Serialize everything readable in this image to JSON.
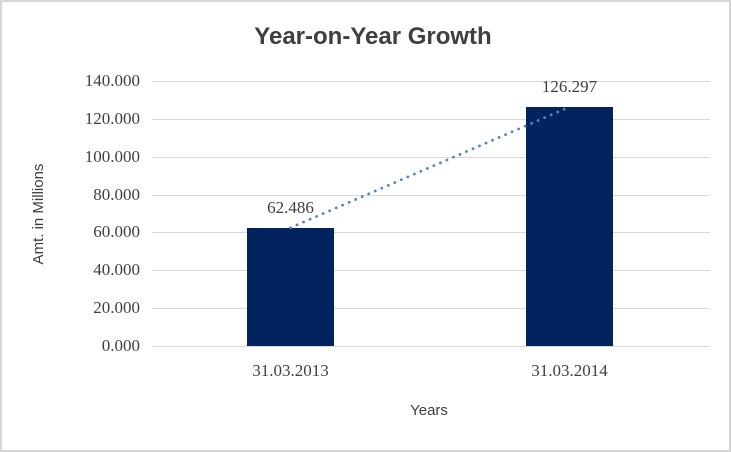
{
  "chart_data": {
    "type": "bar",
    "title": "Year-on-Year Growth",
    "xlabel": "Years",
    "ylabel": "Amt. in Millions",
    "categories": [
      "31.03.2013",
      "31.03.2014"
    ],
    "values": [
      62.486,
      126.297
    ],
    "data_labels": [
      "62.486",
      "126.297"
    ],
    "y_ticks": [
      {
        "value": 140,
        "label": "140.000"
      },
      {
        "value": 120,
        "label": "120.000"
      },
      {
        "value": 100,
        "label": "100.000"
      },
      {
        "value": 80,
        "label": "80.000"
      },
      {
        "value": 60,
        "label": "60.000"
      },
      {
        "value": 40,
        "label": "40.000"
      },
      {
        "value": 20,
        "label": "20.000"
      },
      {
        "value": 0,
        "label": "0.000"
      }
    ],
    "ylim": [
      0,
      140
    ],
    "grid": true,
    "legend": "none",
    "trendline": {
      "type": "linear",
      "style": "dotted"
    },
    "colors": {
      "bar": "#03235E",
      "trendline": "#4E86C4",
      "gridline": "#D9D9D9",
      "text": "#3F3F3F",
      "frame_border": "#D6D6D6",
      "background": "#FFFFFF"
    }
  }
}
